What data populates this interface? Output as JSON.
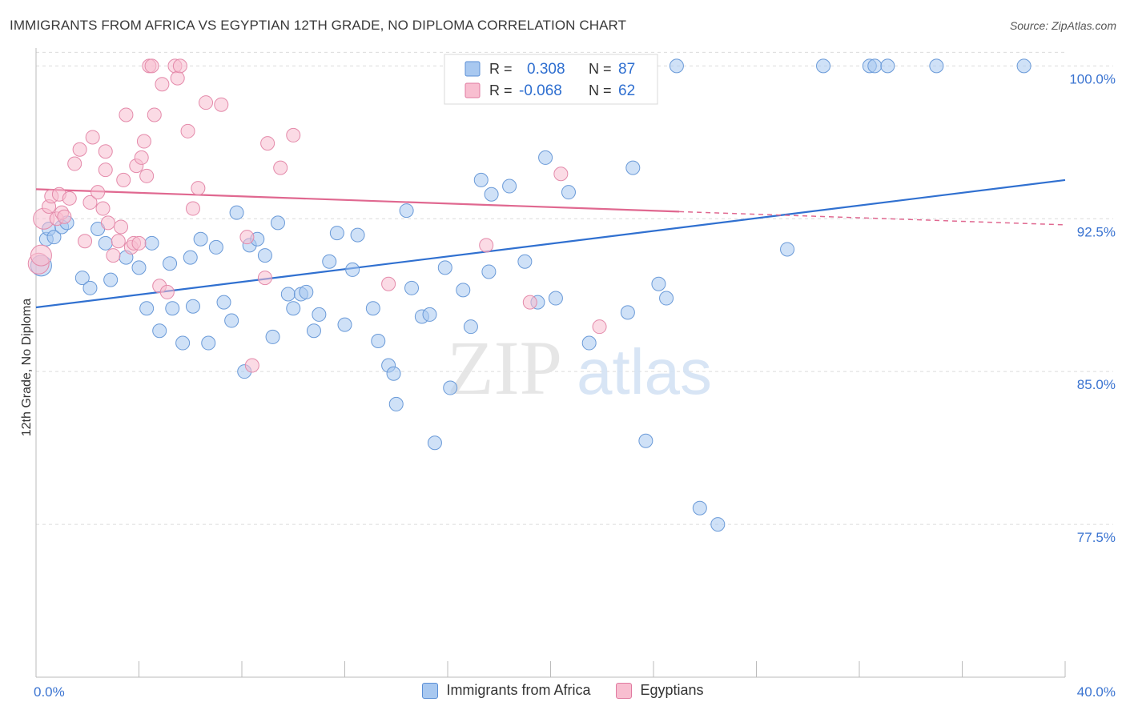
{
  "title": "IMMIGRANTS FROM AFRICA VS EGYPTIAN 12TH GRADE, NO DIPLOMA CORRELATION CHART",
  "source": "Source: ZipAtlas.com",
  "watermark": {
    "zip": "ZIP",
    "atlas": "atlas"
  },
  "stats_legend": [
    {
      "r_label": "R =",
      "r_value": "0.308",
      "n_label": "N =",
      "n_value": "87",
      "color": "#a8c8f0",
      "border": "#5b8fd6"
    },
    {
      "r_label": "R =",
      "r_value": "-0.068",
      "n_label": "N =",
      "n_value": "62",
      "color": "#f8bed0",
      "border": "#e07aa0"
    }
  ],
  "bottom_legend": [
    {
      "label": "Immigrants from Africa",
      "color": "#a8c8f0",
      "border": "#5b8fd6"
    },
    {
      "label": "Egyptians",
      "color": "#f8bed0",
      "border": "#e07aa0"
    }
  ],
  "chart_data": {
    "type": "scatter",
    "xlabel": "",
    "ylabel": "12th Grade, No Diploma",
    "xlim": [
      0,
      40
    ],
    "ylim": [
      70.0,
      100.8
    ],
    "x_tick_labels": [
      {
        "value": 0,
        "label": "0.0%"
      },
      {
        "value": 40,
        "label": "40.0%"
      }
    ],
    "y_tick_labels": [
      {
        "value": 100.0,
        "label": "100.0%"
      },
      {
        "value": 92.5,
        "label": "92.5%"
      },
      {
        "value": 85.0,
        "label": "85.0%"
      },
      {
        "value": 77.5,
        "label": "77.5%"
      }
    ],
    "grid": true,
    "series": [
      {
        "name": "Immigrants from Africa",
        "color": "#a8c8f0",
        "line_color": "#3070d0",
        "trend": {
          "x0": 0,
          "y0": 88.15,
          "x1": 40,
          "y1": 94.4
        },
        "points": [
          [
            0.2,
            90.2
          ],
          [
            0.4,
            91.5
          ],
          [
            0.5,
            92.0
          ],
          [
            0.7,
            91.6
          ],
          [
            1.0,
            92.1
          ],
          [
            1.2,
            92.3
          ],
          [
            1.8,
            89.6
          ],
          [
            2.1,
            89.1
          ],
          [
            2.4,
            92.0
          ],
          [
            2.7,
            91.3
          ],
          [
            2.9,
            89.5
          ],
          [
            3.5,
            90.6
          ],
          [
            4.0,
            90.1
          ],
          [
            4.3,
            88.1
          ],
          [
            4.5,
            91.3
          ],
          [
            4.8,
            87.0
          ],
          [
            5.2,
            90.3
          ],
          [
            5.3,
            88.1
          ],
          [
            5.7,
            86.4
          ],
          [
            6.0,
            90.6
          ],
          [
            6.1,
            88.2
          ],
          [
            6.4,
            91.5
          ],
          [
            6.7,
            86.4
          ],
          [
            7.0,
            91.1
          ],
          [
            7.3,
            88.4
          ],
          [
            7.6,
            87.5
          ],
          [
            7.8,
            92.8
          ],
          [
            8.1,
            85.0
          ],
          [
            8.3,
            91.2
          ],
          [
            8.6,
            91.5
          ],
          [
            8.9,
            90.7
          ],
          [
            9.2,
            86.7
          ],
          [
            9.4,
            92.3
          ],
          [
            9.8,
            88.8
          ],
          [
            10.0,
            88.1
          ],
          [
            10.3,
            88.8
          ],
          [
            10.5,
            88.9
          ],
          [
            10.8,
            87.0
          ],
          [
            11.0,
            87.8
          ],
          [
            11.4,
            90.4
          ],
          [
            11.7,
            91.8
          ],
          [
            12.0,
            87.3
          ],
          [
            12.3,
            90.0
          ],
          [
            12.5,
            91.7
          ],
          [
            13.1,
            88.1
          ],
          [
            13.3,
            86.5
          ],
          [
            13.7,
            85.3
          ],
          [
            13.9,
            84.9
          ],
          [
            14.0,
            83.4
          ],
          [
            14.4,
            92.9
          ],
          [
            14.6,
            89.1
          ],
          [
            15.0,
            87.7
          ],
          [
            15.3,
            87.8
          ],
          [
            15.5,
            81.5
          ],
          [
            15.9,
            90.1
          ],
          [
            16.1,
            84.2
          ],
          [
            16.6,
            89.0
          ],
          [
            16.9,
            87.2
          ],
          [
            17.3,
            94.4
          ],
          [
            17.6,
            89.9
          ],
          [
            17.7,
            93.7
          ],
          [
            18.0,
            100.0
          ],
          [
            18.4,
            94.1
          ],
          [
            19.0,
            90.4
          ],
          [
            19.5,
            88.4
          ],
          [
            19.8,
            95.5
          ],
          [
            20.2,
            88.6
          ],
          [
            20.7,
            93.8
          ],
          [
            21.5,
            86.4
          ],
          [
            23.0,
            87.9
          ],
          [
            23.2,
            95.0
          ],
          [
            23.7,
            81.6
          ],
          [
            24.2,
            89.3
          ],
          [
            24.5,
            88.6
          ],
          [
            24.9,
            100.0
          ],
          [
            25.8,
            78.3
          ],
          [
            26.5,
            77.5
          ],
          [
            29.2,
            91.0
          ],
          [
            30.6,
            100.0
          ],
          [
            32.4,
            100.0
          ],
          [
            32.6,
            100.0
          ],
          [
            33.1,
            100.0
          ],
          [
            35.0,
            100.0
          ],
          [
            38.4,
            100.0
          ]
        ]
      },
      {
        "name": "Egyptians",
        "color": "#f8bed0",
        "line_color": "#e06890",
        "trend": {
          "x0": 0,
          "y0": 93.95,
          "x1": 25,
          "y1": 92.85
        },
        "trend_dashed": {
          "x0": 25,
          "y0": 92.85,
          "x1": 40,
          "y1": 92.2
        },
        "points": [
          [
            0.1,
            90.3
          ],
          [
            0.2,
            90.7
          ],
          [
            0.3,
            92.5
          ],
          [
            0.5,
            93.1
          ],
          [
            0.6,
            93.6
          ],
          [
            0.8,
            92.5
          ],
          [
            0.9,
            93.7
          ],
          [
            1.0,
            92.8
          ],
          [
            1.1,
            92.6
          ],
          [
            1.3,
            93.5
          ],
          [
            1.5,
            95.2
          ],
          [
            1.7,
            95.9
          ],
          [
            1.9,
            91.4
          ],
          [
            2.1,
            93.3
          ],
          [
            2.2,
            96.5
          ],
          [
            2.4,
            93.8
          ],
          [
            2.6,
            93.0
          ],
          [
            2.7,
            94.9
          ],
          [
            2.7,
            95.8
          ],
          [
            2.8,
            92.3
          ],
          [
            3.0,
            90.7
          ],
          [
            3.2,
            91.4
          ],
          [
            3.3,
            92.1
          ],
          [
            3.4,
            94.4
          ],
          [
            3.5,
            97.6
          ],
          [
            3.7,
            91.1
          ],
          [
            3.8,
            91.3
          ],
          [
            3.9,
            95.1
          ],
          [
            4.0,
            91.3
          ],
          [
            4.1,
            95.5
          ],
          [
            4.2,
            96.3
          ],
          [
            4.3,
            94.6
          ],
          [
            4.4,
            100.0
          ],
          [
            4.5,
            100.0
          ],
          [
            4.6,
            97.6
          ],
          [
            4.8,
            89.2
          ],
          [
            4.9,
            99.1
          ],
          [
            5.1,
            88.9
          ],
          [
            5.4,
            100.0
          ],
          [
            5.5,
            99.4
          ],
          [
            5.6,
            100.0
          ],
          [
            5.9,
            96.8
          ],
          [
            6.1,
            93.0
          ],
          [
            6.3,
            94.0
          ],
          [
            6.6,
            98.2
          ],
          [
            7.2,
            98.1
          ],
          [
            8.2,
            91.6
          ],
          [
            8.4,
            85.3
          ],
          [
            8.9,
            89.6
          ],
          [
            9.0,
            96.2
          ],
          [
            9.5,
            95.0
          ],
          [
            10.0,
            96.6
          ],
          [
            13.7,
            89.3
          ],
          [
            17.5,
            91.2
          ],
          [
            18.3,
            100.0
          ],
          [
            19.2,
            88.4
          ],
          [
            20.4,
            94.7
          ],
          [
            21.9,
            87.2
          ]
        ]
      }
    ]
  }
}
